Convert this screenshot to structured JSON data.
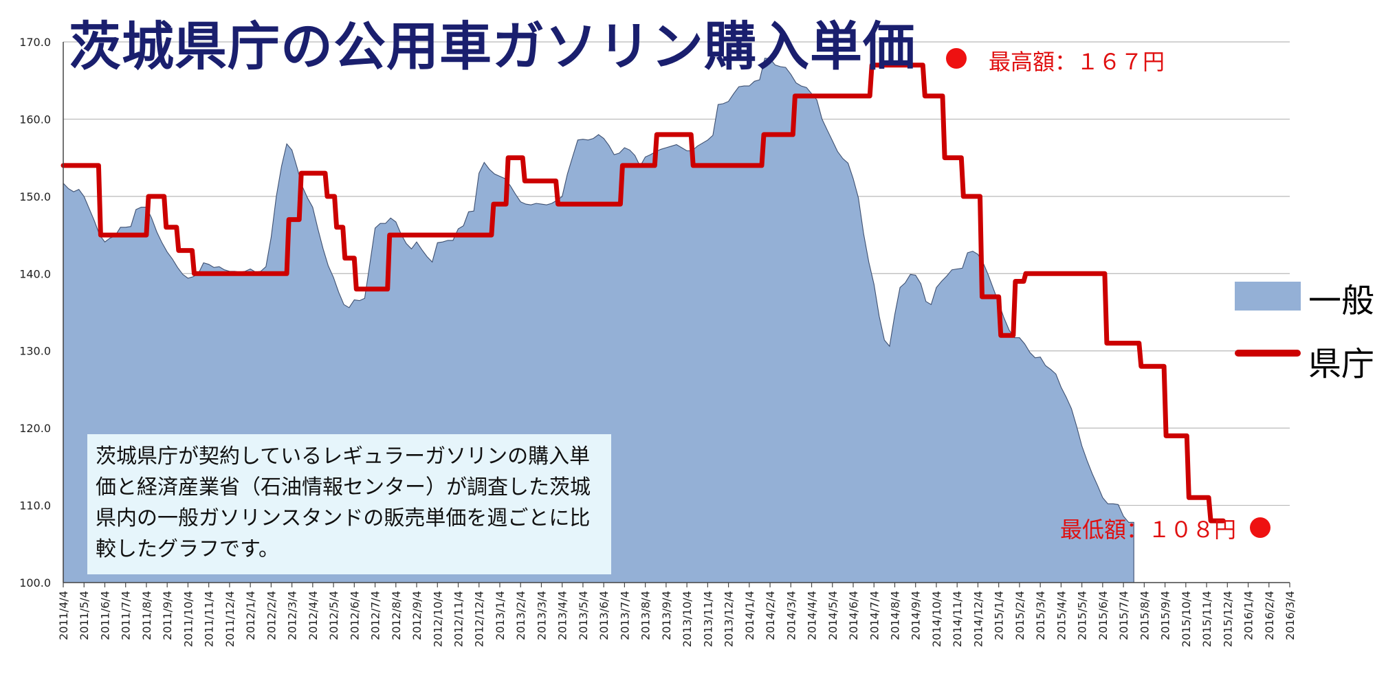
{
  "chart_data": {
    "type": "area",
    "title": "茨城県庁の公用車ガソリン購入単価",
    "ylim": [
      100,
      170
    ],
    "yticks": [
      "100.0",
      "110.0",
      "120.0",
      "130.0",
      "140.0",
      "150.0",
      "160.0",
      "170.0"
    ],
    "grid": "horizontal",
    "legend_placement": "right",
    "categories": [
      "2011/4/4",
      "2011/5/4",
      "2011/6/4",
      "2011/7/4",
      "2011/8/4",
      "2011/9/4",
      "2011/10/4",
      "2011/11/4",
      "2011/12/4",
      "2012/1/4",
      "2012/2/4",
      "2012/3/4",
      "2012/4/4",
      "2012/5/4",
      "2012/6/4",
      "2012/7/4",
      "2012/8/4",
      "2012/9/4",
      "2012/10/4",
      "2012/11/4",
      "2012/12/4",
      "2013/1/4",
      "2013/2/4",
      "2013/3/4",
      "2013/4/4",
      "2013/5/4",
      "2013/6/4",
      "2013/7/4",
      "2013/8/4",
      "2013/9/4",
      "2013/10/4",
      "2013/11/4",
      "2013/12/4",
      "2014/1/4",
      "2014/2/4",
      "2014/3/4",
      "2014/4/4",
      "2014/5/4",
      "2014/6/4",
      "2014/7/4",
      "2014/8/4",
      "2014/9/4",
      "2014/10/4",
      "2014/11/4",
      "2014/12/4",
      "2015/1/4",
      "2015/2/4",
      "2015/3/4",
      "2015/4/4",
      "2015/5/4",
      "2015/6/4",
      "2015/7/4",
      "2015/8/4",
      "2015/9/4",
      "2015/10/4",
      "2015/11/4",
      "2015/12/4",
      "2016/1/4",
      "2016/2/4",
      "2016/3/4"
    ],
    "series": [
      {
        "name": "一般",
        "kind": "area",
        "color": "#94b0d6",
        "points": [
          [
            0,
            151.7
          ],
          [
            0.25,
            151
          ],
          [
            0.5,
            150.6
          ],
          [
            0.75,
            150.9
          ],
          [
            1,
            150
          ],
          [
            1.25,
            148.4
          ],
          [
            1.5,
            146.8
          ],
          [
            1.75,
            145
          ],
          [
            2,
            144.1
          ],
          [
            2.25,
            144.6
          ],
          [
            2.5,
            144.9
          ],
          [
            2.75,
            146
          ],
          [
            3,
            146
          ],
          [
            3.25,
            146.1
          ],
          [
            3.5,
            148.3
          ],
          [
            3.75,
            148.6
          ],
          [
            4,
            148.6
          ],
          [
            4.25,
            147.2
          ],
          [
            4.5,
            145.4
          ],
          [
            4.75,
            144
          ],
          [
            5,
            142.8
          ],
          [
            5.25,
            141.9
          ],
          [
            5.5,
            140.8
          ],
          [
            5.75,
            139.9
          ],
          [
            6,
            139.4
          ],
          [
            6.25,
            139.6
          ],
          [
            6.5,
            140
          ],
          [
            6.75,
            141.4
          ],
          [
            7,
            141.2
          ],
          [
            7.25,
            140.8
          ],
          [
            7.5,
            140.9
          ],
          [
            7.75,
            140.5
          ],
          [
            8,
            140.3
          ],
          [
            8.25,
            140.3
          ],
          [
            8.5,
            140.2
          ],
          [
            8.75,
            140.3
          ],
          [
            9,
            140.6
          ],
          [
            9.25,
            140.2
          ],
          [
            9.5,
            140.3
          ],
          [
            9.75,
            140.9
          ],
          [
            10,
            144.7
          ],
          [
            10.25,
            150
          ],
          [
            10.5,
            153.9
          ],
          [
            10.75,
            156.8
          ],
          [
            11,
            156
          ],
          [
            11.25,
            153.7
          ],
          [
            11.5,
            151.3
          ],
          [
            11.75,
            149.8
          ],
          [
            12,
            148.6
          ],
          [
            12.25,
            145.8
          ],
          [
            12.5,
            143.2
          ],
          [
            12.75,
            141
          ],
          [
            13,
            139.5
          ],
          [
            13.25,
            137.6
          ],
          [
            13.5,
            136
          ],
          [
            13.75,
            135.6
          ],
          [
            14,
            136.6
          ],
          [
            14.25,
            136.5
          ],
          [
            14.5,
            136.8
          ],
          [
            14.75,
            141.3
          ],
          [
            15,
            145.9
          ],
          [
            15.25,
            146.5
          ],
          [
            15.5,
            146.5
          ],
          [
            15.75,
            147.2
          ],
          [
            16,
            146.7
          ],
          [
            16.25,
            145.1
          ],
          [
            16.5,
            143.9
          ],
          [
            16.75,
            143.2
          ],
          [
            17,
            144.1
          ],
          [
            17.25,
            143.1
          ],
          [
            17.5,
            142.2
          ],
          [
            17.75,
            141.5
          ],
          [
            18,
            144
          ],
          [
            18.25,
            144.1
          ],
          [
            18.5,
            144.3
          ],
          [
            18.75,
            144.3
          ],
          [
            19,
            145.8
          ],
          [
            19.25,
            146.2
          ],
          [
            19.5,
            148
          ],
          [
            19.75,
            148.1
          ],
          [
            20,
            153
          ],
          [
            20.25,
            154.4
          ],
          [
            20.5,
            153.5
          ],
          [
            20.75,
            152.9
          ],
          [
            21,
            152.6
          ],
          [
            21.25,
            152.3
          ],
          [
            21.5,
            151.4
          ],
          [
            21.75,
            150.3
          ],
          [
            22,
            149.3
          ],
          [
            22.25,
            149
          ],
          [
            22.5,
            148.9
          ],
          [
            22.75,
            149.1
          ],
          [
            23,
            149
          ],
          [
            23.25,
            148.9
          ],
          [
            23.5,
            149.1
          ],
          [
            23.75,
            149.5
          ],
          [
            24,
            150
          ],
          [
            24.25,
            152.9
          ],
          [
            24.5,
            155.1
          ],
          [
            24.75,
            157.3
          ],
          [
            25,
            157.4
          ],
          [
            25.25,
            157.3
          ],
          [
            25.5,
            157.5
          ],
          [
            25.75,
            158
          ],
          [
            26,
            157.5
          ],
          [
            26.25,
            156.6
          ],
          [
            26.5,
            155.4
          ],
          [
            26.75,
            155.6
          ],
          [
            27,
            156.3
          ],
          [
            27.25,
            156
          ],
          [
            27.5,
            155.3
          ],
          [
            27.75,
            153.9
          ],
          [
            28,
            155.1
          ],
          [
            28.25,
            155.4
          ],
          [
            28.5,
            155.8
          ],
          [
            28.75,
            156.1
          ],
          [
            29,
            156.3
          ],
          [
            29.25,
            156.5
          ],
          [
            29.5,
            156.7
          ],
          [
            29.75,
            156.3
          ],
          [
            30,
            155.9
          ],
          [
            30.25,
            155.9
          ],
          [
            30.5,
            156.5
          ],
          [
            30.75,
            156.9
          ],
          [
            31,
            157.3
          ],
          [
            31.25,
            157.9
          ],
          [
            31.5,
            161.9
          ],
          [
            31.75,
            162
          ],
          [
            32,
            162.3
          ],
          [
            32.25,
            163.3
          ],
          [
            32.5,
            164.2
          ],
          [
            32.75,
            164.3
          ],
          [
            33,
            164.3
          ],
          [
            33.25,
            164.9
          ],
          [
            33.5,
            165.1
          ],
          [
            33.75,
            167.9
          ],
          [
            34,
            167.8
          ],
          [
            34.25,
            167
          ],
          [
            34.5,
            166.8
          ],
          [
            34.75,
            166.7
          ],
          [
            35,
            165.8
          ],
          [
            35.25,
            164.7
          ],
          [
            35.5,
            164.3
          ],
          [
            35.75,
            164.1
          ],
          [
            36,
            163.3
          ],
          [
            36.25,
            162.5
          ],
          [
            36.5,
            160
          ],
          [
            36.75,
            158.6
          ],
          [
            37,
            157.2
          ],
          [
            37.25,
            155.8
          ],
          [
            37.5,
            154.9
          ],
          [
            37.75,
            154.3
          ],
          [
            38,
            152.3
          ],
          [
            38.25,
            149.8
          ],
          [
            38.5,
            145.2
          ],
          [
            38.75,
            141.5
          ],
          [
            39,
            138.6
          ],
          [
            39.25,
            134.5
          ],
          [
            39.5,
            131.4
          ],
          [
            39.75,
            130.6
          ],
          [
            40,
            134.7
          ],
          [
            40.25,
            138.2
          ],
          [
            40.5,
            138.8
          ],
          [
            40.75,
            139.9
          ],
          [
            41,
            139.8
          ],
          [
            41.25,
            138.7
          ],
          [
            41.5,
            136.4
          ],
          [
            41.75,
            136
          ],
          [
            42,
            138.2
          ],
          [
            42.25,
            139
          ],
          [
            42.5,
            139.7
          ],
          [
            42.75,
            140.5
          ],
          [
            43,
            140.6
          ],
          [
            43.25,
            140.7
          ],
          [
            43.5,
            142.7
          ],
          [
            43.75,
            142.9
          ],
          [
            44,
            142.5
          ],
          [
            44.25,
            141.4
          ],
          [
            44.5,
            139.8
          ],
          [
            44.75,
            138
          ],
          [
            45,
            136.2
          ],
          [
            45.25,
            134.3
          ],
          [
            45.5,
            132.7
          ],
          [
            45.75,
            131.7
          ],
          [
            46,
            131.7
          ],
          [
            46.25,
            130.9
          ],
          [
            46.5,
            129.8
          ],
          [
            46.75,
            129.1
          ],
          [
            47,
            129.2
          ],
          [
            47.25,
            128.1
          ],
          [
            47.5,
            127.6
          ],
          [
            47.75,
            127
          ],
          [
            48,
            125.3
          ],
          [
            48.25,
            124
          ],
          [
            48.5,
            122.5
          ],
          [
            48.75,
            120.2
          ],
          [
            49,
            117.7
          ],
          [
            49.25,
            115.8
          ],
          [
            49.5,
            114.1
          ],
          [
            49.75,
            112.6
          ],
          [
            50,
            111
          ],
          [
            50.25,
            110.2
          ],
          [
            50.5,
            110.2
          ],
          [
            50.75,
            110.1
          ],
          [
            51,
            108.6
          ],
          [
            51.25,
            107.8
          ],
          [
            51.5,
            107.8
          ]
        ]
      },
      {
        "name": "県庁",
        "kind": "step",
        "color": "#cc0000",
        "points": [
          [
            0,
            154
          ],
          [
            1.7,
            154
          ],
          [
            1.8,
            145
          ],
          [
            4,
            145
          ],
          [
            4.1,
            150
          ],
          [
            4.85,
            150
          ],
          [
            4.95,
            146
          ],
          [
            5.45,
            146
          ],
          [
            5.55,
            143
          ],
          [
            6.2,
            143
          ],
          [
            6.3,
            140
          ],
          [
            10.75,
            140
          ],
          [
            10.85,
            147
          ],
          [
            11.35,
            147
          ],
          [
            11.45,
            153
          ],
          [
            12.6,
            153
          ],
          [
            12.7,
            150
          ],
          [
            13.05,
            150
          ],
          [
            13.15,
            146
          ],
          [
            13.45,
            146
          ],
          [
            13.55,
            142
          ],
          [
            14,
            142
          ],
          [
            14.1,
            138
          ],
          [
            15.6,
            138
          ],
          [
            15.7,
            145
          ],
          [
            20.6,
            145
          ],
          [
            20.7,
            149
          ],
          [
            21.3,
            149
          ],
          [
            21.4,
            155
          ],
          [
            22.1,
            155
          ],
          [
            22.2,
            152
          ],
          [
            23.7,
            152
          ],
          [
            23.8,
            149
          ],
          [
            26.8,
            149
          ],
          [
            26.9,
            154
          ],
          [
            28.45,
            154
          ],
          [
            28.55,
            158
          ],
          [
            30.2,
            158
          ],
          [
            30.3,
            154
          ],
          [
            33.6,
            154
          ],
          [
            33.7,
            158
          ],
          [
            35.1,
            158
          ],
          [
            35.2,
            163
          ],
          [
            38.8,
            163
          ],
          [
            38.9,
            167
          ],
          [
            41.35,
            167
          ],
          [
            41.45,
            163
          ],
          [
            42.3,
            163
          ],
          [
            42.4,
            155
          ],
          [
            43.2,
            155
          ],
          [
            43.3,
            150
          ],
          [
            44.1,
            150
          ],
          [
            44.2,
            137
          ],
          [
            45,
            137
          ],
          [
            45.1,
            132
          ],
          [
            45.7,
            132
          ],
          [
            45.8,
            139
          ],
          [
            46.2,
            139
          ],
          [
            46.3,
            140
          ],
          [
            50.1,
            140
          ],
          [
            50.2,
            131
          ],
          [
            51.75,
            131
          ],
          [
            51.85,
            128
          ],
          [
            52.95,
            128
          ],
          [
            53.05,
            119
          ],
          [
            54.05,
            119
          ],
          [
            54.15,
            111
          ],
          [
            55.1,
            111
          ],
          [
            55.2,
            108
          ],
          [
            55.8,
            108
          ]
        ]
      }
    ]
  },
  "note": {
    "line1": "茨城県庁が契約しているレギュラーガソリンの購入単",
    "line2": "価と経済産業省（石油情報センター）が調査した茨城",
    "line3": "県内の一般ガソリンスタンドの販売単価を週ごとに比",
    "line4": "較したグラフです。"
  },
  "legend": {
    "general": "一般",
    "prefecture": "県庁"
  },
  "annotations": {
    "max": "最高額：１６７円",
    "min": "最低額：１０８円"
  },
  "colors": {
    "area": "#94b0d6",
    "line": "#cc0000",
    "title": "#1a1f6e",
    "annotation": "#e01010"
  }
}
